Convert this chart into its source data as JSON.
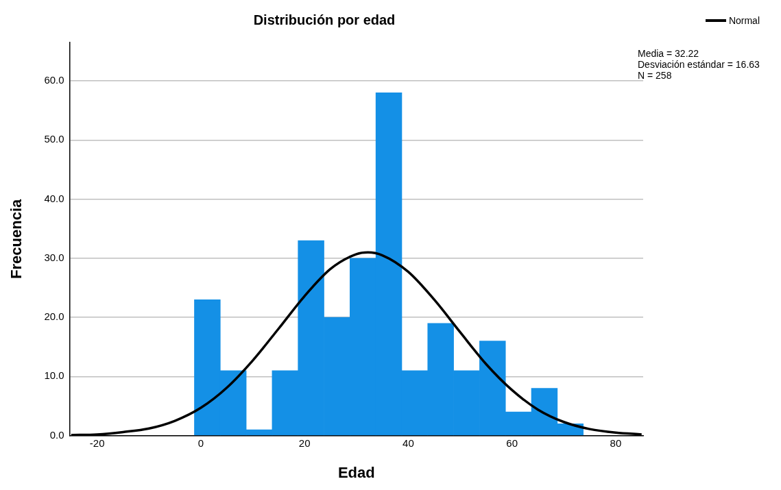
{
  "chart_data": {
    "type": "histogram",
    "title": "Distribución por edad",
    "xlabel": "Edad",
    "ylabel": "Frecuencia",
    "bins": [
      -1.25,
      3.75,
      8.75,
      13.75,
      18.75,
      23.75,
      28.75,
      33.75,
      38.75,
      43.75,
      48.75,
      53.75,
      58.75,
      63.75,
      68.75,
      73.75
    ],
    "values": [
      23,
      11,
      1,
      11,
      33,
      20,
      30,
      58,
      11,
      19,
      11,
      16,
      4,
      8,
      2
    ],
    "color": "#1490e6",
    "series": [
      {
        "name": "Normal",
        "type": "line",
        "color": "#000000",
        "x": [
          -25,
          -20,
          -15,
          -10,
          -5,
          0,
          5,
          10,
          15,
          20,
          25,
          30,
          32.22,
          35,
          40,
          45,
          50,
          55,
          60,
          65,
          70,
          75,
          80,
          85
        ],
        "values": [
          0.1,
          0.2,
          0.6,
          1.2,
          2.5,
          4.7,
          8.1,
          12.7,
          18.1,
          23.6,
          28.2,
          30.7,
          31.0,
          30.5,
          27.7,
          23.0,
          17.5,
          12.1,
          7.7,
          4.4,
          2.3,
          1.1,
          0.5,
          0.2
        ]
      }
    ],
    "xlim": [
      -25.3,
      85.3
    ],
    "xticks": [
      -20,
      0,
      20,
      40,
      60,
      80
    ],
    "ylim": [
      0,
      66.5
    ],
    "yticks": [
      {
        "value": 0,
        "label": "0.0"
      },
      {
        "value": 10,
        "label": "10.0"
      },
      {
        "value": 20,
        "label": "20.0"
      },
      {
        "value": 30,
        "label": "30.0"
      },
      {
        "value": 40,
        "label": "40.0"
      },
      {
        "value": 50,
        "label": "50.0"
      },
      {
        "value": 60,
        "label": "60.0"
      }
    ],
    "grid": "y",
    "legend": "top right",
    "annotations": [
      "Media = 32.22",
      "Desviación estándar = 16.63",
      "N = 258"
    ]
  }
}
